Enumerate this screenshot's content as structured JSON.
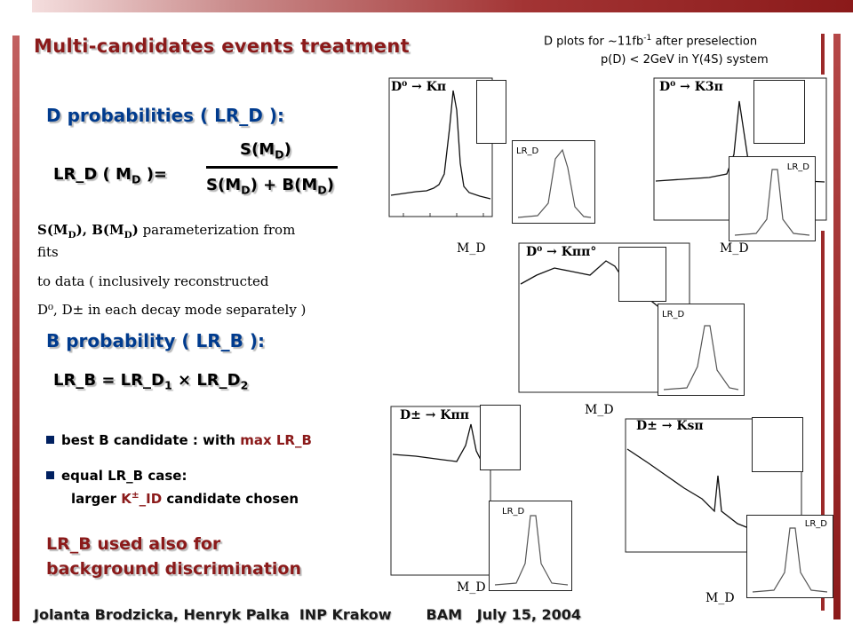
{
  "header": {
    "title": "Multi-candidates events treatment",
    "note_line1": "D plots for  ~11fb",
    "note_line1_sup": "-1",
    "note_line1_end": "  after preselection",
    "note_line2": "p(D) < 2GeV in Y(4S) system"
  },
  "d_section": {
    "heading": "D probabilities  ( LR_D ):",
    "lhs": "LR_D ( M",
    "lhs_sub": "D",
    "lhs_end": " )=",
    "numerator": "S(M",
    "numerator_sub": "D",
    "numerator_end": ")",
    "denominator": "S(M",
    "denominator_sub": "D",
    "denominator_mid": ") + B(M",
    "denominator_sub2": "D",
    "denominator_end": ")",
    "para1_prefix": "S(M",
    "para1_sub1": "D",
    "para1_mid": "), B(M",
    "para1_sub2": "D",
    "para1_end": ")",
    "para1_rest": " parameterization from",
    "para2": "fits",
    "para3": "to data  ( inclusively  reconstructed",
    "para4": "D⁰, D± in each decay mode separately )"
  },
  "b_section": {
    "heading": "B probability ( LR_B ):",
    "formula": "LR_B = LR_D",
    "sub1": "1",
    "times": "  ×  ",
    "formula2": "LR_D",
    "sub2": "2",
    "bullet1_text": "best B candidate : with ",
    "bullet1_red": "max LR_B",
    "bullet2_text": "equal LR_B case:",
    "bullet2_line2_pre": "larger ",
    "bullet2_line2_red": "K",
    "bullet2_line2_red_sup": "±",
    "bullet2_line2_red2": "_ID",
    "bullet2_line2_post": " candidate chosen",
    "closing_line1": "LR_B used also for",
    "closing_line2": "background discrimination"
  },
  "footer": {
    "text": "Jolanta Brodzicka, Henryk Palka  INP Krakow       BAM   July 15, 2004"
  },
  "plots": [
    {
      "label": "D⁰ → Kπ",
      "inset": "LR_D",
      "xlabel": "M_D"
    },
    {
      "label": "D⁰ → K3π",
      "inset": "LR_D",
      "xlabel": "M_D"
    },
    {
      "label": "D⁰ → Kππ°",
      "inset": "LR_D",
      "xlabel": "M_D"
    },
    {
      "label": "D± → Kππ",
      "inset": "LR_D",
      "xlabel": "M_D"
    },
    {
      "label": "D± → Ksπ",
      "inset": "LR_D",
      "xlabel": "M_D"
    }
  ],
  "colors": {
    "title": "#8b1a1a",
    "heading": "#003b8e",
    "accent_bar": "#8b1a1a"
  }
}
